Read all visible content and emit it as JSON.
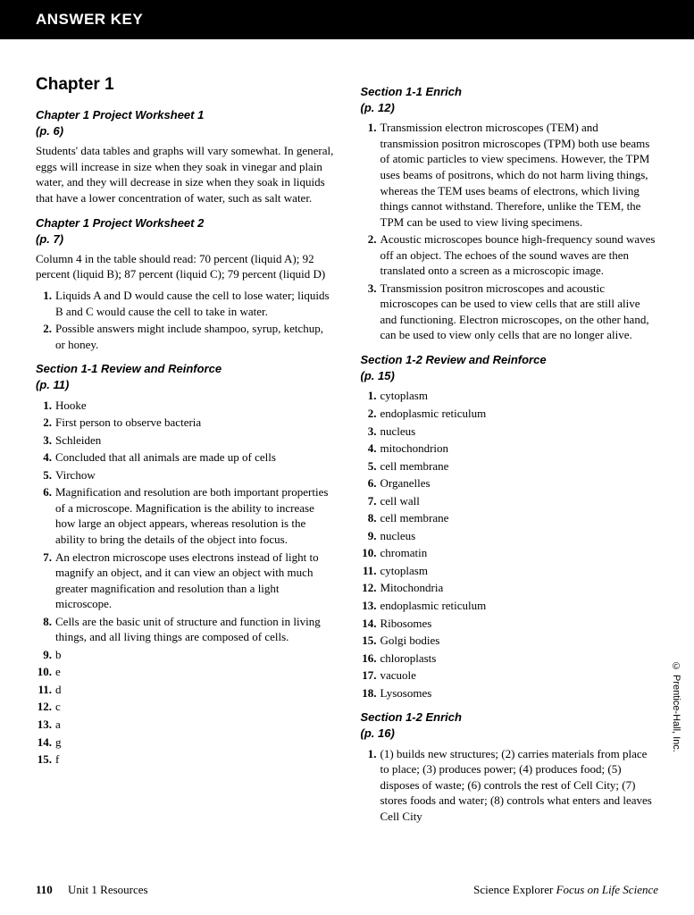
{
  "header": "ANSWER KEY",
  "left": {
    "chapter_title": "Chapter 1",
    "sections": [
      {
        "title": "Chapter 1 Project Worksheet 1\n(p. 6)",
        "para": "Students' data tables and graphs will vary somewhat. In general, eggs will increase in size when they soak in vinegar and plain water, and they will decrease in size when they soak in liquids that have a lower concentration of water, such as salt water."
      },
      {
        "title": "Chapter 1 Project Worksheet 2\n(p. 7)",
        "para": "Column 4 in the table should read: 70 percent (liquid A); 92 percent (liquid B); 87 percent (liquid C); 79 percent (liquid D)",
        "items": [
          "Liquids A and D would cause the cell to lose water; liquids B and C would cause the cell to take in water.",
          "Possible answers might include shampoo, syrup, ketchup, or honey."
        ]
      },
      {
        "title": "Section 1-1 Review and Reinforce\n(p. 11)",
        "items": [
          "Hooke",
          "First person to observe bacteria",
          "Schleiden",
          "Concluded that all animals are made up of cells",
          "Virchow",
          "Magnification and resolution are both important properties of a microscope. Magnification is the ability to increase how large an object appears, whereas resolution is the ability to bring the details of the object into focus.",
          "An electron microscope uses electrons instead of light to magnify an object, and it can view an object with much greater magnification and resolution than a light microscope.",
          "Cells are the basic unit of structure and function in living things, and all living things are composed of cells.",
          "b",
          "e",
          "d",
          "c",
          "a",
          "g",
          "f"
        ]
      }
    ]
  },
  "right": {
    "sections": [
      {
        "title": "Section 1-1 Enrich\n(p. 12)",
        "items": [
          "Transmission electron microscopes (TEM) and transmission positron microscopes (TPM) both use beams of atomic particles to view specimens. However, the TPM uses beams of positrons, which do not harm living things, whereas the TEM uses beams of electrons, which living things cannot withstand. Therefore, unlike the TEM, the TPM can be used to view living specimens.",
          "Acoustic microscopes bounce high-frequency sound waves off an object. The echoes of the sound waves are then translated onto a screen as a microscopic image.",
          "Transmission positron microscopes and acoustic microscopes can be used to view cells that are still alive and functioning. Electron microscopes, on the other hand, can be used to view only cells that are no longer alive."
        ]
      },
      {
        "title": "Section 1-2 Review and Reinforce\n(p. 15)",
        "items": [
          "cytoplasm",
          "endoplasmic reticulum",
          "nucleus",
          "mitochondrion",
          "cell membrane",
          "Organelles",
          "cell wall",
          "cell membrane",
          "nucleus",
          "chromatin",
          "cytoplasm",
          "Mitochondria",
          "endoplasmic reticulum",
          "Ribosomes",
          "Golgi bodies",
          "chloroplasts",
          "vacuole",
          "Lysosomes"
        ]
      },
      {
        "title": "Section 1-2 Enrich\n(p. 16)",
        "items": [
          "(1) builds new structures; (2) carries materials from place to place; (3) produces power; (4) produces food; (5) disposes of waste; (6) controls the rest of Cell City; (7) stores foods and water; (8) controls what enters and leaves Cell City"
        ]
      }
    ]
  },
  "footer": {
    "page": "110",
    "unit": "Unit 1 Resources",
    "book_prefix": "Science Explorer ",
    "book_italic": "Focus on Life Science"
  },
  "copyright": "© Prentice-Hall, Inc."
}
